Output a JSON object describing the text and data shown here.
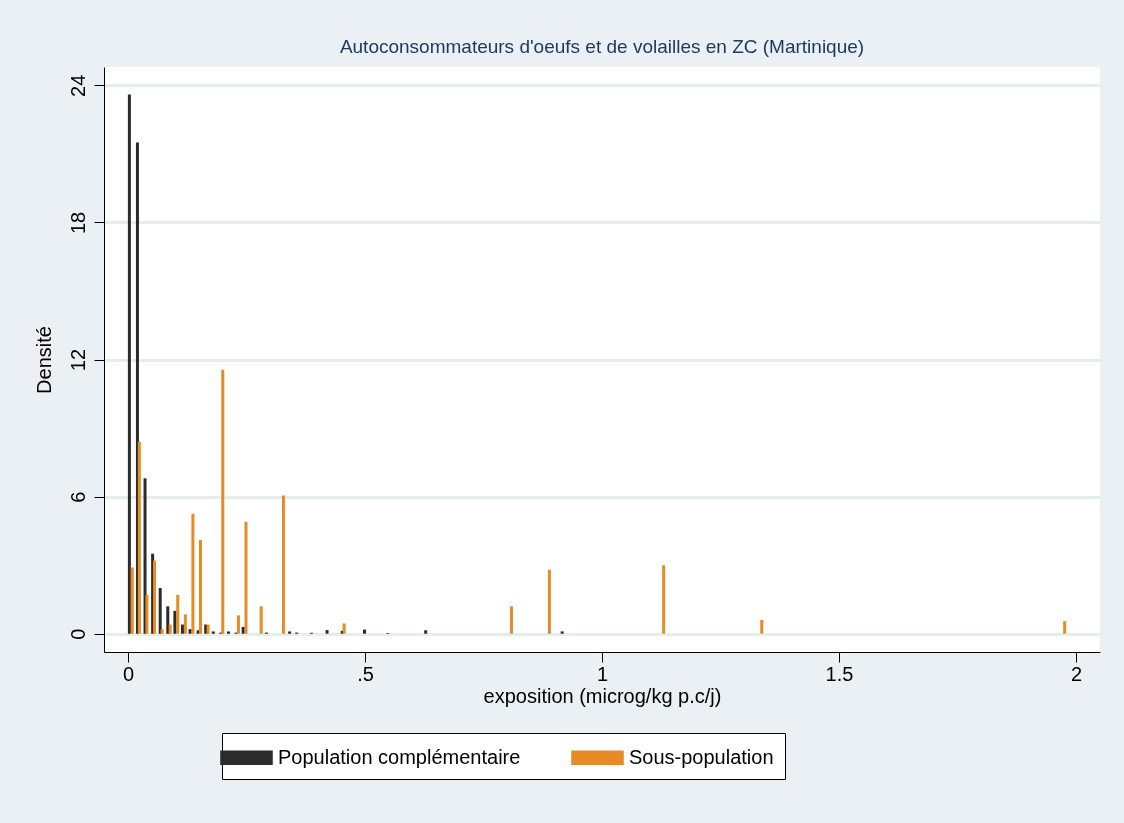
{
  "chart_data": {
    "type": "bar",
    "title": "Autoconsommateurs d'oeufs et de volailles en ZC (Martinique)",
    "xlabel": "exposition (microg/kg p.c/j)",
    "ylabel": "Densité",
    "xlim": [
      -0.04,
      2.04
    ],
    "ylim": [
      -0.8,
      24.8
    ],
    "xticks": [
      0,
      {
        "value": 0.5,
        "label": ".5"
      },
      1,
      1.5,
      2
    ],
    "yticks": [
      0,
      6,
      12,
      18,
      24
    ],
    "grid": "y",
    "legend": "bottom",
    "series": [
      {
        "name": "Population complémentaire",
        "color": "#2b2b2b",
        "x": [
          0.003,
          0.02,
          0.036,
          0.052,
          0.068,
          0.084,
          0.099,
          0.115,
          0.131,
          0.148,
          0.164,
          0.18,
          0.196,
          0.212,
          0.228,
          0.243,
          0.292,
          0.341,
          0.356,
          0.387,
          0.42,
          0.452,
          0.499,
          0.548,
          0.628,
          0.916
        ],
        "values": [
          23.6,
          21.5,
          6.8,
          3.5,
          2.0,
          1.2,
          1.0,
          0.4,
          0.2,
          0.15,
          0.4,
          0.1,
          0.05,
          0.1,
          0.05,
          0.3,
          0.05,
          0.1,
          0.05,
          0.04,
          0.16,
          0.13,
          0.18,
          0.03,
          0.15,
          0.1
        ]
      },
      {
        "name": "Sous-population",
        "color": "#e88a25",
        "x": [
          0.009,
          0.024,
          0.04,
          0.056,
          0.072,
          0.089,
          0.105,
          0.121,
          0.137,
          0.153,
          0.169,
          0.2,
          0.233,
          0.249,
          0.281,
          0.328,
          0.456,
          0.809,
          0.889,
          1.13,
          1.337,
          1.976
        ],
        "values": [
          2.9,
          8.4,
          1.7,
          3.2,
          0.2,
          0.4,
          1.7,
          0.85,
          5.25,
          4.1,
          0.4,
          11.55,
          0.8,
          4.9,
          1.2,
          6.05,
          0.45,
          1.2,
          2.8,
          3.0,
          0.6,
          0.55
        ]
      }
    ]
  }
}
